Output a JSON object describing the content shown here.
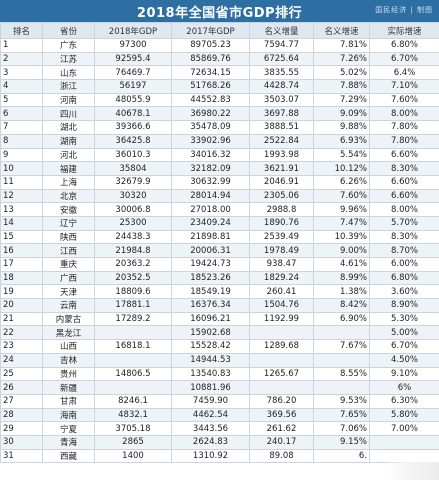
{
  "title": "2018年全国省市GDP排行",
  "watermark_tag": "国民经济 | 制图",
  "table": {
    "headers": [
      "排名",
      "省份",
      "2018年GDP",
      "2017年GDP",
      "名义增量",
      "名义增速",
      "实际增速"
    ],
    "rows": [
      {
        "rank": "1",
        "province": "广东",
        "gdp2018": "97300",
        "gdp2017": "89705.23",
        "increase": "7594.77",
        "nominal": "7.81%",
        "real": "6.80%"
      },
      {
        "rank": "2",
        "province": "江苏",
        "gdp2018": "92595.4",
        "gdp2017": "85869.76",
        "increase": "6725.64",
        "nominal": "7.26%",
        "real": "6.70%"
      },
      {
        "rank": "3",
        "province": "山东",
        "gdp2018": "76469.7",
        "gdp2017": "72634.15",
        "increase": "3835.55",
        "nominal": "5.02%",
        "real": "6.4%"
      },
      {
        "rank": "4",
        "province": "浙江",
        "gdp2018": "56197",
        "gdp2017": "51768.26",
        "increase": "4428.74",
        "nominal": "7.88%",
        "real": "7.10%"
      },
      {
        "rank": "5",
        "province": "河南",
        "gdp2018": "48055.9",
        "gdp2017": "44552.83",
        "increase": "3503.07",
        "nominal": "7.29%",
        "real": "7.60%"
      },
      {
        "rank": "6",
        "province": "四川",
        "gdp2018": "40678.1",
        "gdp2017": "36980.22",
        "increase": "3697.88",
        "nominal": "9.09%",
        "real": "8.00%"
      },
      {
        "rank": "7",
        "province": "湖北",
        "gdp2018": "39366.6",
        "gdp2017": "35478.09",
        "increase": "3888.51",
        "nominal": "9.88%",
        "real": "7.80%"
      },
      {
        "rank": "8",
        "province": "湖南",
        "gdp2018": "36425.8",
        "gdp2017": "33902.96",
        "increase": "2522.84",
        "nominal": "6.93%",
        "real": "7.80%"
      },
      {
        "rank": "9",
        "province": "河北",
        "gdp2018": "36010.3",
        "gdp2017": "34016.32",
        "increase": "1993.98",
        "nominal": "5.54%",
        "real": "6.60%"
      },
      {
        "rank": "10",
        "province": "福建",
        "gdp2018": "35804",
        "gdp2017": "32182.09",
        "increase": "3621.91",
        "nominal": "10.12%",
        "real": "8.30%"
      },
      {
        "rank": "11",
        "province": "上海",
        "gdp2018": "32679.9",
        "gdp2017": "30632.99",
        "increase": "2046.91",
        "nominal": "6.26%",
        "real": "6.60%"
      },
      {
        "rank": "12",
        "province": "北京",
        "gdp2018": "30320",
        "gdp2017": "28014.94",
        "increase": "2305.06",
        "nominal": "7.60%",
        "real": "6.60%"
      },
      {
        "rank": "13",
        "province": "安徽",
        "gdp2018": "30006.8",
        "gdp2017": "27018.00",
        "increase": "2988.8",
        "nominal": "9.96%",
        "real": "8.00%"
      },
      {
        "rank": "14",
        "province": "辽宁",
        "gdp2018": "25300",
        "gdp2017": "23409.24",
        "increase": "1890.76",
        "nominal": "7.47%",
        "real": "5.70%"
      },
      {
        "rank": "15",
        "province": "陕西",
        "gdp2018": "24438.3",
        "gdp2017": "21898.81",
        "increase": "2539.49",
        "nominal": "10.39%",
        "real": "8.30%"
      },
      {
        "rank": "16",
        "province": "江西",
        "gdp2018": "21984.8",
        "gdp2017": "20006.31",
        "increase": "1978.49",
        "nominal": "9.00%",
        "real": "8.70%"
      },
      {
        "rank": "17",
        "province": "重庆",
        "gdp2018": "20363.2",
        "gdp2017": "19424.73",
        "increase": "938.47",
        "nominal": "4.61%",
        "real": "6.00%"
      },
      {
        "rank": "18",
        "province": "广西",
        "gdp2018": "20352.5",
        "gdp2017": "18523.26",
        "increase": "1829.24",
        "nominal": "8.99%",
        "real": "6.80%"
      },
      {
        "rank": "19",
        "province": "天津",
        "gdp2018": "18809.6",
        "gdp2017": "18549.19",
        "increase": "260.41",
        "nominal": "1.38%",
        "real": "3.60%"
      },
      {
        "rank": "20",
        "province": "云南",
        "gdp2018": "17881.1",
        "gdp2017": "16376.34",
        "increase": "1504.76",
        "nominal": "8.42%",
        "real": "8.90%"
      },
      {
        "rank": "21",
        "province": "内蒙古",
        "gdp2018": "17289.2",
        "gdp2017": "16096.21",
        "increase": "1192.99",
        "nominal": "6.90%",
        "real": "5.30%"
      },
      {
        "rank": "22",
        "province": "黑龙江",
        "gdp2018": "",
        "gdp2017": "15902.68",
        "increase": "",
        "nominal": "",
        "real": "5.00%"
      },
      {
        "rank": "23",
        "province": "山西",
        "gdp2018": "16818.1",
        "gdp2017": "15528.42",
        "increase": "1289.68",
        "nominal": "7.67%",
        "real": "6.70%"
      },
      {
        "rank": "24",
        "province": "吉林",
        "gdp2018": "",
        "gdp2017": "14944.53",
        "increase": "",
        "nominal": "",
        "real": "4.50%"
      },
      {
        "rank": "25",
        "province": "贵州",
        "gdp2018": "14806.5",
        "gdp2017": "13540.83",
        "increase": "1265.67",
        "nominal": "8.55%",
        "real": "9.10%"
      },
      {
        "rank": "26",
        "province": "新疆",
        "gdp2018": "",
        "gdp2017": "10881.96",
        "increase": "",
        "nominal": "",
        "real": "6%"
      },
      {
        "rank": "27",
        "province": "甘肃",
        "gdp2018": "8246.1",
        "gdp2017": "7459.90",
        "increase": "786.20",
        "nominal": "9.53%",
        "real": "6.30%"
      },
      {
        "rank": "28",
        "province": "海南",
        "gdp2018": "4832.1",
        "gdp2017": "4462.54",
        "increase": "369.56",
        "nominal": "7.65%",
        "real": "5.80%"
      },
      {
        "rank": "29",
        "province": "宁夏",
        "gdp2018": "3705.18",
        "gdp2017": "3443.56",
        "increase": "261.62",
        "nominal": "7.06%",
        "real": "7.00%"
      },
      {
        "rank": "30",
        "province": "青海",
        "gdp2018": "2865",
        "gdp2017": "2624.83",
        "increase": "240.17",
        "nominal": "9.15%",
        "real": ""
      },
      {
        "rank": "31",
        "province": "西藏",
        "gdp2018": "1400",
        "gdp2017": "1310.92",
        "increase": "89.08",
        "nominal": "6.",
        "real": ""
      }
    ]
  }
}
